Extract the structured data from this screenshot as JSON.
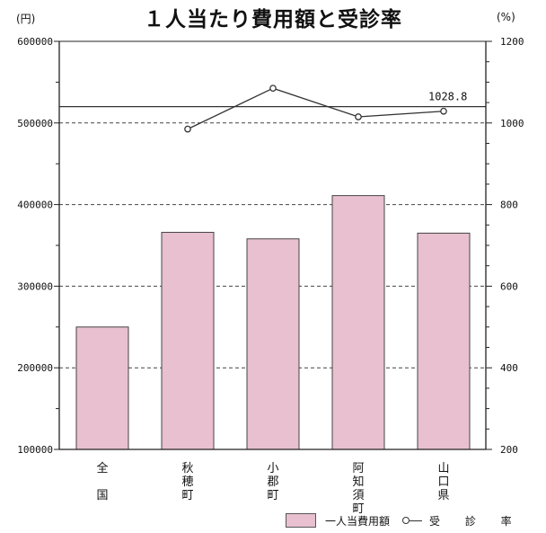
{
  "title": "１人当たり費用額と受診率",
  "left_unit": "(円)",
  "right_unit": "(%)",
  "legend": {
    "bar_label": "一人当費用額",
    "line_label": "受 診 率"
  },
  "annotation": "1028.8",
  "colors": {
    "bar_fill": "#e8c0d0",
    "bar_stroke": "#444444",
    "line": "#333333"
  },
  "chart_data": {
    "type": "bar",
    "categories": [
      "全国",
      "秋穂町",
      "小郡町",
      "阿知須町",
      "山口県"
    ],
    "left_axis": {
      "ylim": [
        100000,
        600000
      ],
      "ticks": [
        100000,
        200000,
        300000,
        400000,
        500000,
        600000
      ],
      "tick_labels": [
        "100000",
        "200000",
        "300000",
        "400000",
        "500000",
        "600000"
      ]
    },
    "right_axis": {
      "ylim": [
        200,
        1200
      ],
      "ticks": [
        200,
        400,
        600,
        800,
        1000,
        1200
      ],
      "tick_labels": [
        "200",
        "400",
        "600",
        "800",
        "1000",
        "1200"
      ]
    },
    "series": [
      {
        "name": "一人当費用額",
        "type": "bar",
        "axis": "left",
        "values": [
          250000,
          366000,
          358000,
          411000,
          365000
        ]
      },
      {
        "name": "受 診 率",
        "type": "line",
        "axis": "right",
        "values": [
          null,
          985,
          1085,
          1015,
          1028.8
        ]
      }
    ],
    "reference_line": {
      "axis": "right",
      "value": 1040
    },
    "grid": "dashed"
  }
}
